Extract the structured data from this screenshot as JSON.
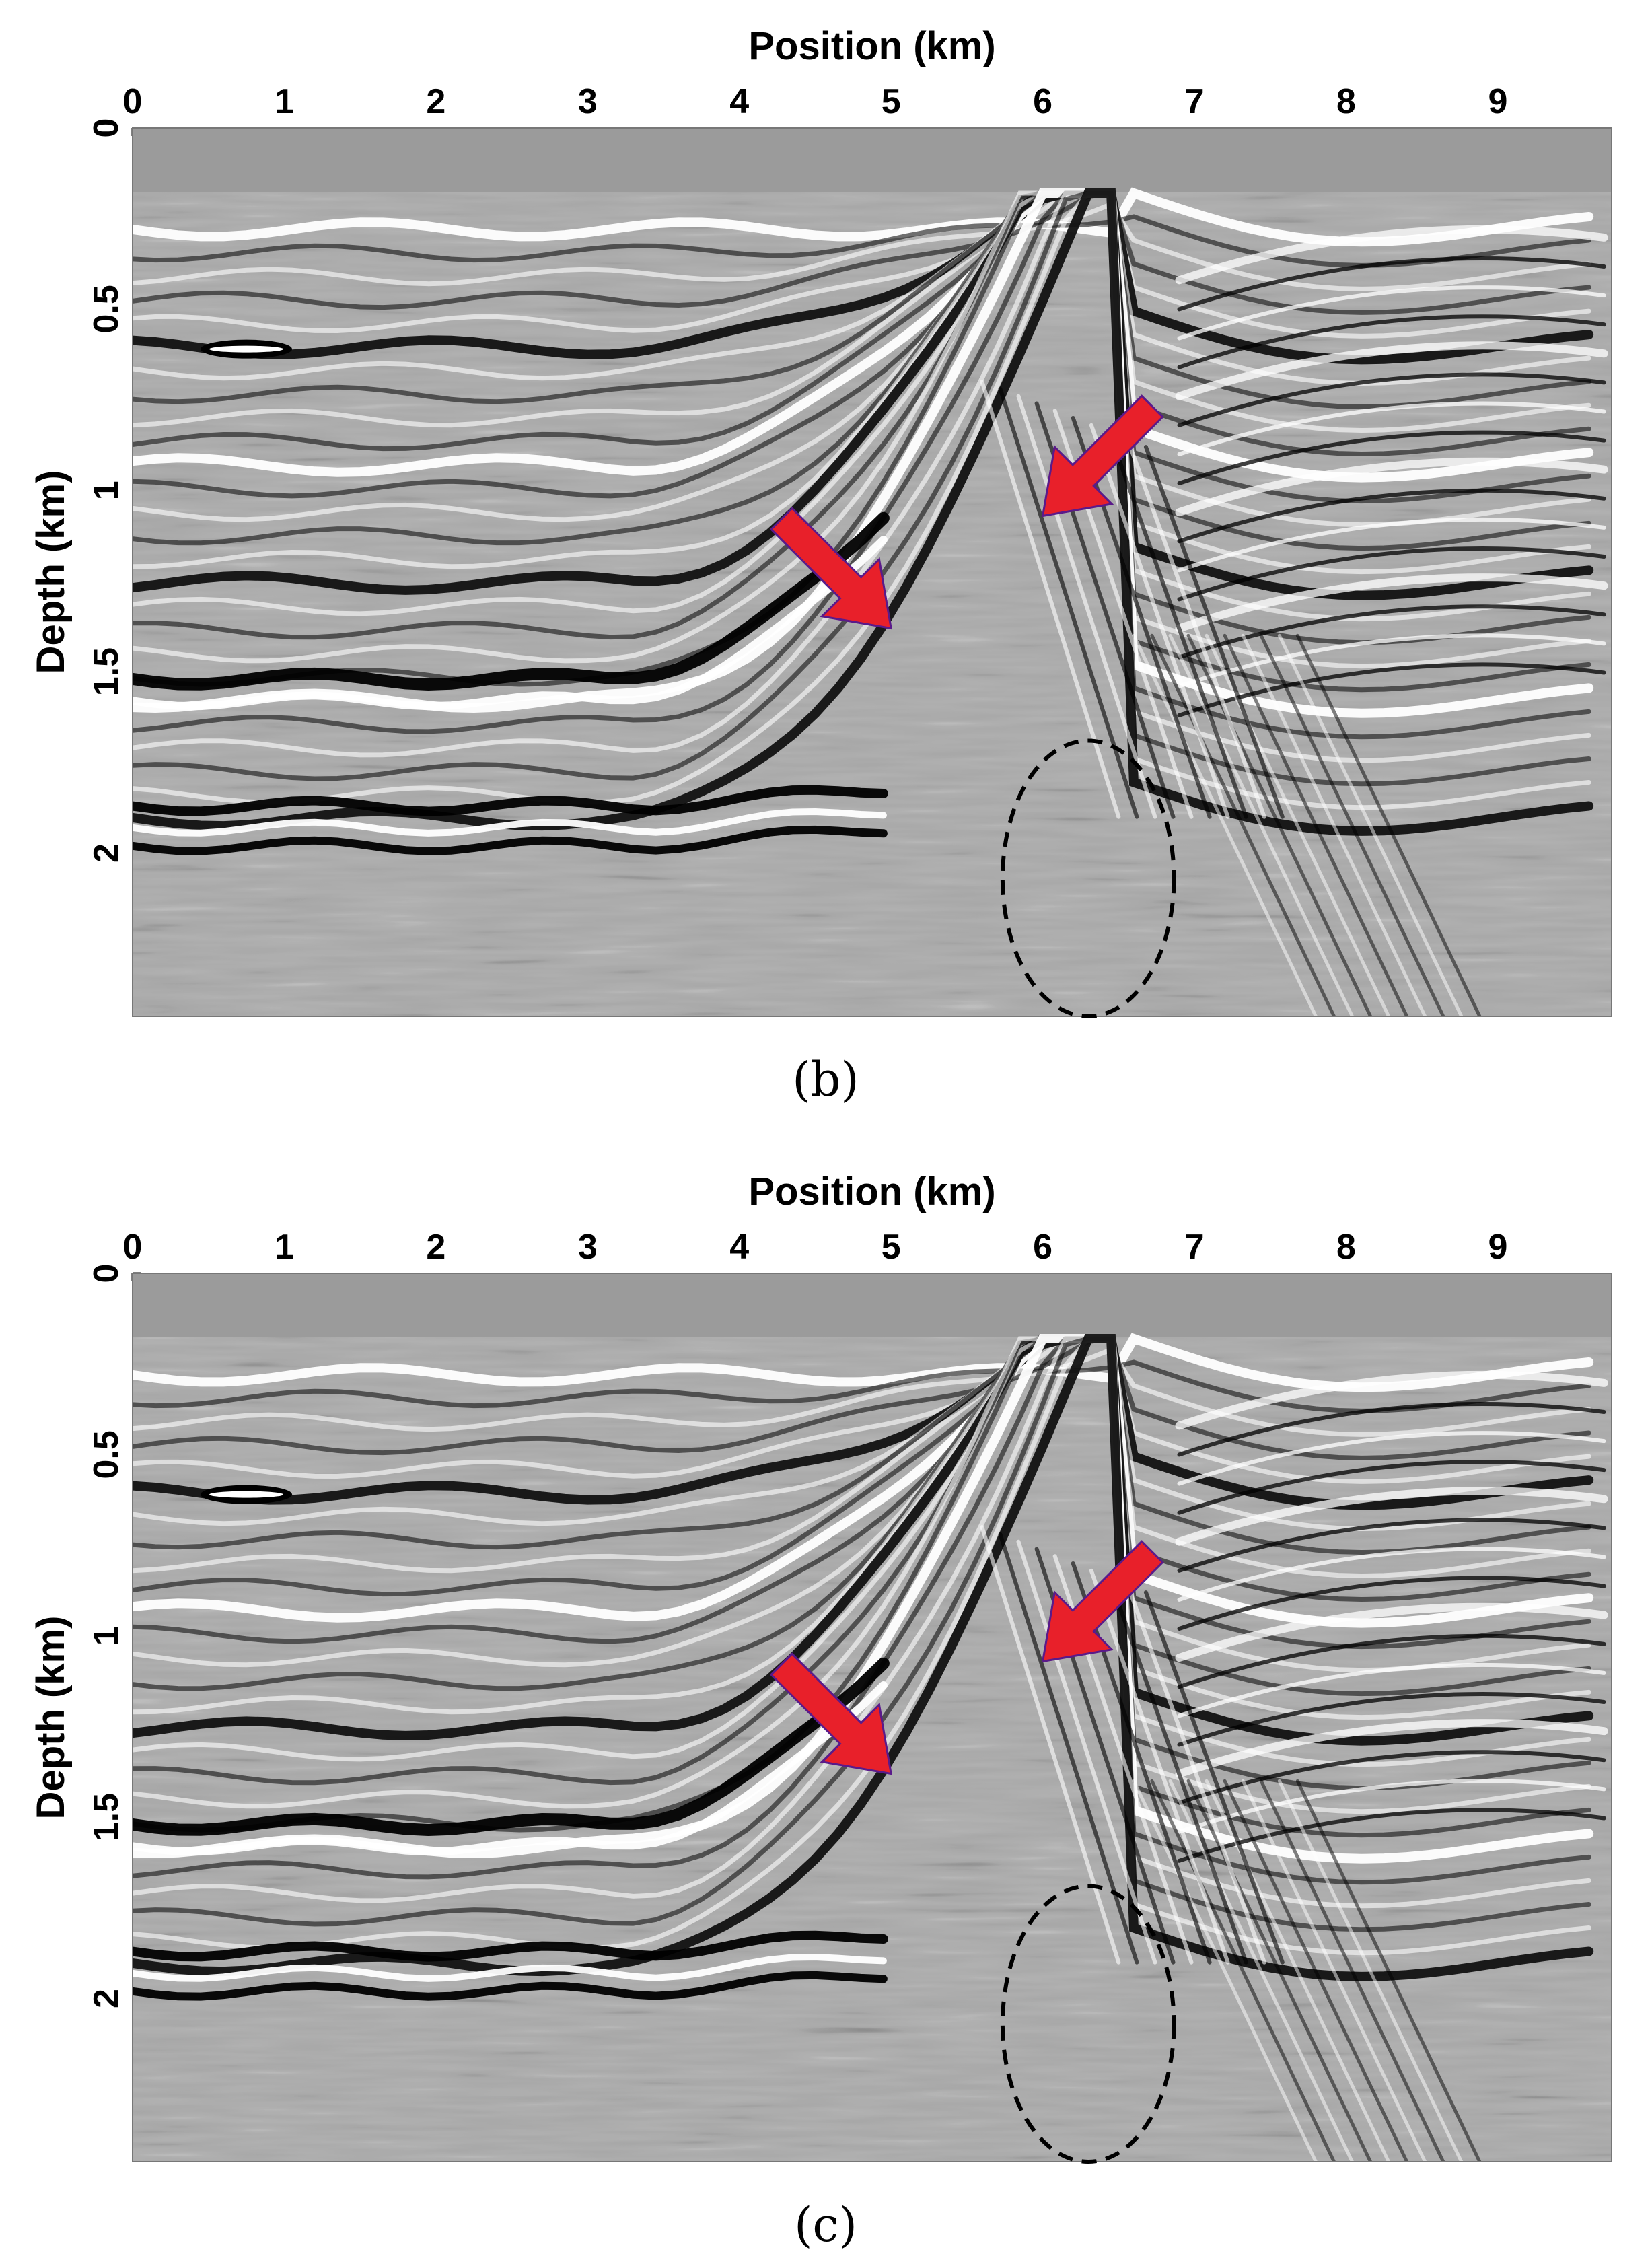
{
  "panels": [
    {
      "id": "b",
      "caption": "(b)",
      "x_axis": {
        "label": "Position (km)",
        "ticks": [
          "0",
          "1",
          "2",
          "3",
          "4",
          "5",
          "6",
          "7",
          "8",
          "9"
        ],
        "range": [
          0,
          9.75
        ]
      },
      "y_axis": {
        "label": "Depth (km)",
        "ticks": [
          "0",
          "0.5",
          "1",
          "1.5",
          "2"
        ],
        "range": [
          0,
          2.45
        ]
      },
      "annotations": {
        "arrows": [
          {
            "name": "left-arrow",
            "tip": [
              5.0,
              1.38
            ],
            "direction": "down-right",
            "color": "#e8202a"
          },
          {
            "name": "right-arrow",
            "tip": [
              6.0,
              1.07
            ],
            "direction": "down-left",
            "color": "#e8202a"
          }
        ],
        "ellipse": {
          "center": [
            6.3,
            2.07
          ],
          "radii": [
            1.13,
            0.38
          ],
          "style": "dashed",
          "color": "#000000"
        }
      }
    },
    {
      "id": "c",
      "caption": "(c)",
      "x_axis": {
        "label": "Position (km)",
        "ticks": [
          "0",
          "1",
          "2",
          "3",
          "4",
          "5",
          "6",
          "7",
          "8",
          "9"
        ],
        "range": [
          0,
          9.75
        ]
      },
      "y_axis": {
        "label": "Depth (km)",
        "ticks": [
          "0",
          "0.5",
          "1",
          "1.5",
          "2"
        ],
        "range": [
          0,
          2.45
        ]
      },
      "annotations": {
        "arrows": [
          {
            "name": "left-arrow",
            "tip": [
              5.0,
              1.38
            ],
            "direction": "down-right",
            "color": "#e8202a"
          },
          {
            "name": "right-arrow",
            "tip": [
              6.0,
              1.07
            ],
            "direction": "down-left",
            "color": "#e8202a"
          }
        ],
        "ellipse": {
          "center": [
            6.3,
            2.07
          ],
          "radii": [
            1.13,
            0.38
          ],
          "style": "dashed",
          "color": "#000000"
        }
      }
    }
  ]
}
